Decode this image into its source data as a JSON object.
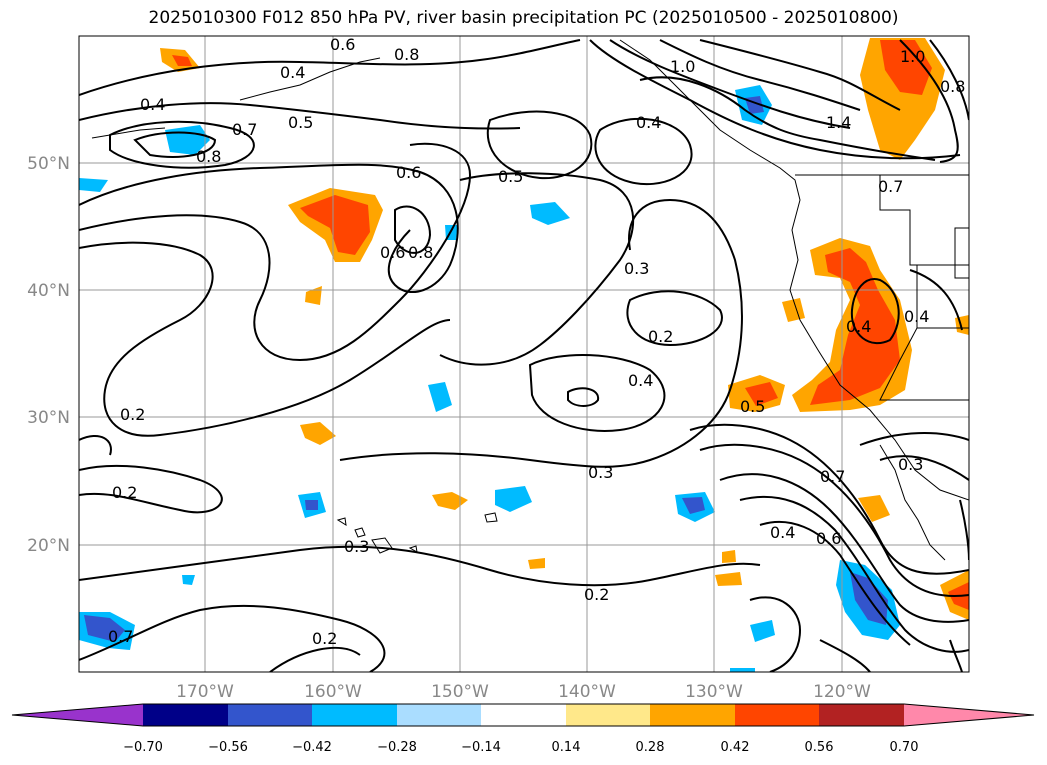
{
  "title": "2025010300 F012 850 hPa PV, river basin precipitation PC (2025010500 - 2025010800)",
  "lat_labels": [
    "50°N",
    "40°N",
    "30°N",
    "20°N"
  ],
  "lon_labels": [
    "170°W",
    "160°W",
    "150°W",
    "140°W",
    "130°W",
    "120°W"
  ],
  "colorbar": {
    "tick_labels": [
      "−0.70",
      "−0.56",
      "−0.42",
      "−0.28",
      "−0.14",
      "0.14",
      "0.28",
      "0.42",
      "0.56",
      "0.70"
    ],
    "colors": [
      "#9933cc",
      "#000088",
      "#3355cc",
      "#00bbff",
      "#aaddff",
      "#ffffff",
      "#ffe88a",
      "#ffa500",
      "#ff4500",
      "#b22222",
      "#ff88aa"
    ]
  },
  "contour_labels": [
    "0.4",
    "0.5",
    "0.6",
    "0.7",
    "0.8",
    "0.6",
    "0.8",
    "0.5",
    "0.4",
    "0.3",
    "0.2",
    "0.4",
    "0.3",
    "0.5",
    "0.7",
    "0.2",
    "0.2",
    "0.3",
    "0.2",
    "0.2",
    "0.4",
    "0.6",
    "0.3",
    "0.4",
    "0.4",
    "1.0",
    "1.4",
    "0.7",
    "0.4",
    "0.6",
    "0.8",
    "1.0",
    "0.8",
    "0.7"
  ],
  "colors": {
    "title": "#000000",
    "axis_text": "#888888",
    "grid": "#999999",
    "contour": "#000000"
  }
}
